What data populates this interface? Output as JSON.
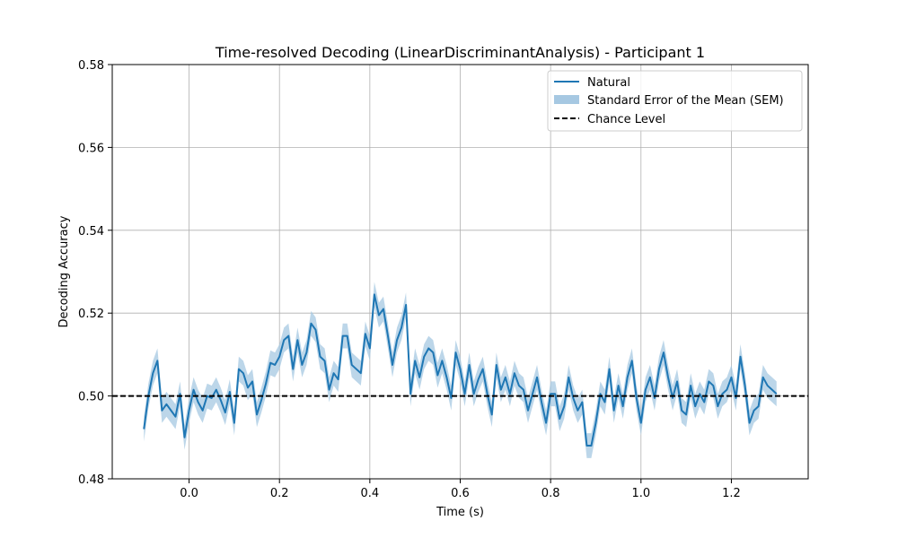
{
  "chart_data": {
    "type": "line",
    "title": "Time-resolved Decoding (LinearDiscriminantAnalysis) - Participant 1",
    "xlabel": "Time (s)",
    "ylabel": "Decoding Accuracy",
    "xlim": [
      -0.17,
      1.37
    ],
    "ylim": [
      0.48,
      0.58
    ],
    "xticks": [
      0.0,
      0.2,
      0.4,
      0.6,
      0.8,
      1.0,
      1.2
    ],
    "xtick_labels": [
      "0.0",
      "0.2",
      "0.4",
      "0.6",
      "0.8",
      "1.0",
      "1.2"
    ],
    "yticks": [
      0.48,
      0.5,
      0.52,
      0.54,
      0.56,
      0.58
    ],
    "ytick_labels": [
      "0.48",
      "0.50",
      "0.52",
      "0.54",
      "0.56",
      "0.58"
    ],
    "grid": true,
    "legend_position": "top-right",
    "legend": {
      "line": "Natural",
      "band": "Standard Error of the Mean (SEM)",
      "chance": "Chance Level"
    },
    "chance_level": 0.5,
    "colors": {
      "line": "#1f77b4",
      "band": "#a6c8e2",
      "chance": "#000000",
      "grid": "#b0b0b0"
    },
    "sem": 0.003,
    "series": [
      {
        "name": "Natural",
        "x": [
          -0.1,
          -0.09,
          -0.08,
          -0.07,
          -0.06,
          -0.05,
          -0.04,
          -0.03,
          -0.02,
          -0.01,
          0.0,
          0.01,
          0.02,
          0.03,
          0.04,
          0.05,
          0.06,
          0.07,
          0.08,
          0.09,
          0.1,
          0.11,
          0.12,
          0.13,
          0.14,
          0.15,
          0.16,
          0.17,
          0.18,
          0.19,
          0.2,
          0.21,
          0.22,
          0.23,
          0.24,
          0.25,
          0.26,
          0.27,
          0.28,
          0.29,
          0.3,
          0.31,
          0.32,
          0.33,
          0.34,
          0.35,
          0.36,
          0.37,
          0.38,
          0.39,
          0.4,
          0.41,
          0.42,
          0.43,
          0.44,
          0.45,
          0.46,
          0.47,
          0.48,
          0.49,
          0.5,
          0.51,
          0.52,
          0.53,
          0.54,
          0.55,
          0.56,
          0.57,
          0.58,
          0.59,
          0.6,
          0.61,
          0.62,
          0.63,
          0.64,
          0.65,
          0.66,
          0.67,
          0.68,
          0.69,
          0.7,
          0.71,
          0.72,
          0.73,
          0.74,
          0.75,
          0.76,
          0.77,
          0.78,
          0.79,
          0.8,
          0.81,
          0.82,
          0.83,
          0.84,
          0.85,
          0.86,
          0.87,
          0.88,
          0.89,
          0.9,
          0.91,
          0.92,
          0.93,
          0.94,
          0.95,
          0.96,
          0.97,
          0.98,
          0.99,
          1.0,
          1.01,
          1.02,
          1.03,
          1.04,
          1.05,
          1.06,
          1.07,
          1.08,
          1.09,
          1.1,
          1.11,
          1.12,
          1.13,
          1.14,
          1.15,
          1.16,
          1.17,
          1.18,
          1.19,
          1.2,
          1.21,
          1.22,
          1.23,
          1.24,
          1.25,
          1.26,
          1.27,
          1.28,
          1.29,
          1.3
        ],
        "y": [
          0.492,
          0.5,
          0.5055,
          0.5085,
          0.4965,
          0.498,
          0.4965,
          0.495,
          0.5005,
          0.49,
          0.4965,
          0.5015,
          0.4985,
          0.4965,
          0.5,
          0.4995,
          0.5015,
          0.499,
          0.496,
          0.501,
          0.4935,
          0.5065,
          0.5055,
          0.502,
          0.5035,
          0.4955,
          0.499,
          0.503,
          0.508,
          0.5075,
          0.5095,
          0.5135,
          0.5145,
          0.5065,
          0.5135,
          0.5075,
          0.5105,
          0.5175,
          0.516,
          0.5095,
          0.5085,
          0.5015,
          0.5055,
          0.504,
          0.5145,
          0.5145,
          0.5075,
          0.5065,
          0.5055,
          0.515,
          0.5115,
          0.5245,
          0.5195,
          0.521,
          0.5145,
          0.5075,
          0.5135,
          0.5165,
          0.522,
          0.5005,
          0.5085,
          0.5045,
          0.5095,
          0.5115,
          0.5105,
          0.505,
          0.5085,
          0.5045,
          0.4995,
          0.5105,
          0.5065,
          0.5005,
          0.5075,
          0.5005,
          0.504,
          0.5065,
          0.5005,
          0.4955,
          0.5075,
          0.5015,
          0.5045,
          0.5005,
          0.5055,
          0.5025,
          0.5015,
          0.4965,
          0.5005,
          0.5045,
          0.4985,
          0.4935,
          0.5005,
          0.5005,
          0.4945,
          0.4975,
          0.5045,
          0.4995,
          0.4965,
          0.4985,
          0.488,
          0.488,
          0.4935,
          0.5005,
          0.4985,
          0.5065,
          0.4965,
          0.5025,
          0.4975,
          0.5045,
          0.5085,
          0.4995,
          0.4935,
          0.5015,
          0.5045,
          0.4995,
          0.5065,
          0.5105,
          0.5045,
          0.4995,
          0.5035,
          0.4965,
          0.4955,
          0.5025,
          0.4975,
          0.5005,
          0.4985,
          0.5035,
          0.5025,
          0.4975,
          0.5005,
          0.5015,
          0.5045,
          0.4995,
          0.5095,
          0.5025,
          0.4935,
          0.4965,
          0.4975,
          0.5045,
          0.5025,
          0.5015,
          0.5005
        ]
      }
    ]
  }
}
